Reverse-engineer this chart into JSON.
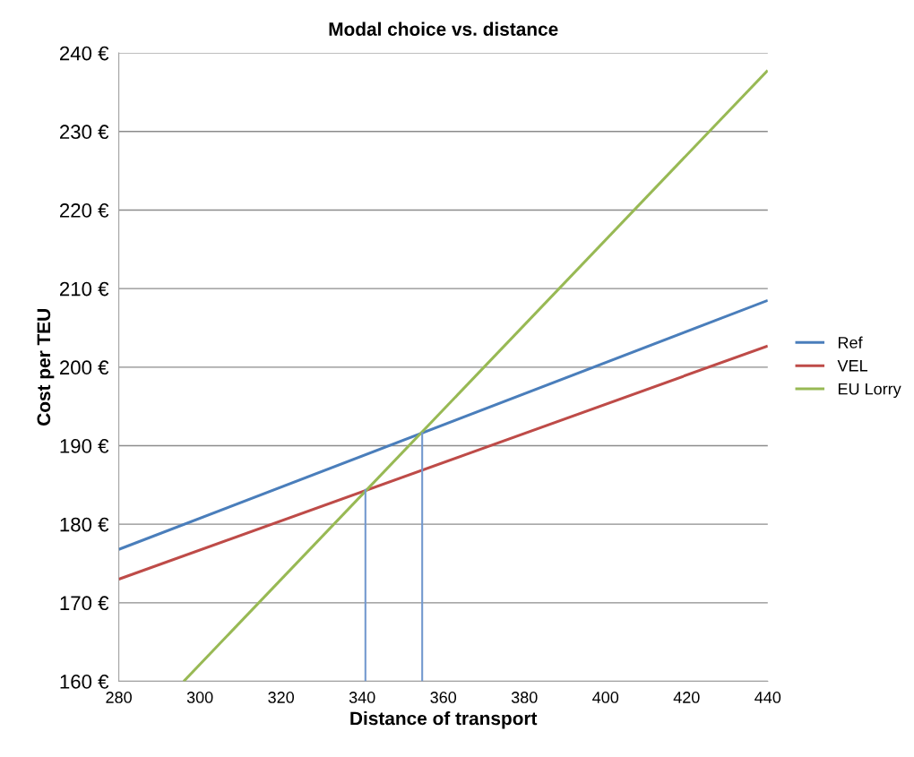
{
  "chart_data": {
    "type": "line",
    "title": "Modal choice vs. distance",
    "xlabel": "Distance of transport",
    "ylabel": "Cost per TEU",
    "series": [
      {
        "name": "Ref",
        "color": "#4a7ebb",
        "x": [
          280,
          440
        ],
        "values": [
          176.8,
          208.5
        ]
      },
      {
        "name": "VEL",
        "color": "#be4b48",
        "x": [
          280,
          440
        ],
        "values": [
          173.0,
          202.7
        ]
      },
      {
        "name": "EU Lorry",
        "color": "#98b954",
        "x": [
          296,
          440
        ],
        "values": [
          160,
          237.8
        ]
      },
      {
        "color": "#7399cf",
        "x": [
          340.8,
          340.8
        ],
        "values": [
          160,
          184.5
        ]
      },
      {
        "color": "#7399cf",
        "x": [
          354.8,
          354.8
        ],
        "values": [
          160,
          191.7
        ]
      }
    ],
    "xlim": [
      280,
      440
    ],
    "xticks": [
      280,
      300,
      320,
      340,
      360,
      380,
      400,
      420,
      440
    ],
    "ylim": [
      160,
      240
    ],
    "yticks": [
      {
        "value": 160,
        "label": "160 €"
      },
      {
        "value": 170,
        "label": "170 €"
      },
      {
        "value": 180,
        "label": "180 €"
      },
      {
        "value": 190,
        "label": "190 €"
      },
      {
        "value": 200,
        "label": "200 €"
      },
      {
        "value": 210,
        "label": "210 €"
      },
      {
        "value": 220,
        "label": "220 €"
      },
      {
        "value": 230,
        "label": "230 €"
      },
      {
        "value": 240,
        "label": "240 €"
      }
    ],
    "grid": "y",
    "legend": "right",
    "marker": "none",
    "line_style": "solid"
  }
}
